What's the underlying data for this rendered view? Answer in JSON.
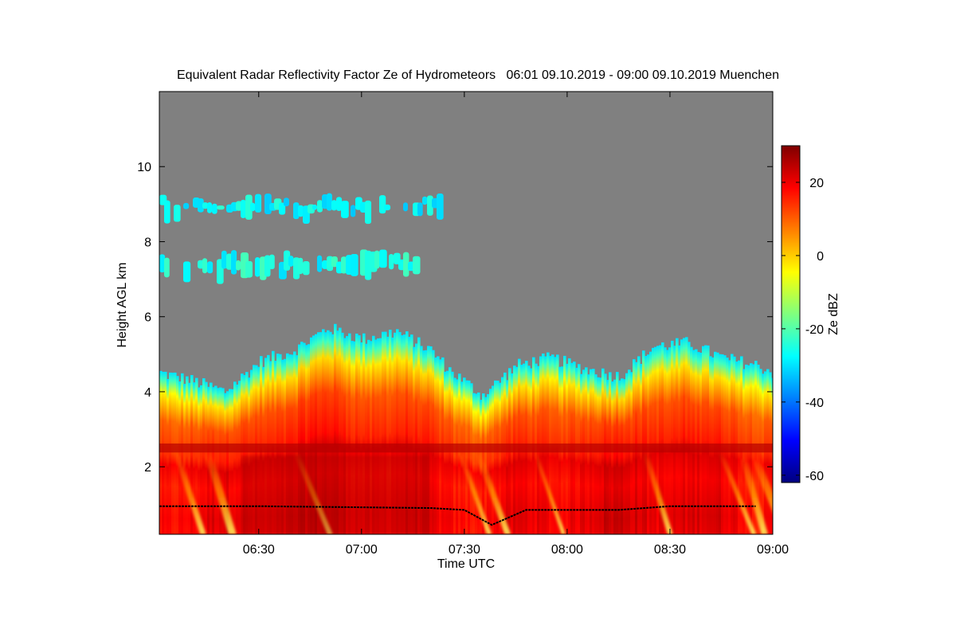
{
  "chart_data": {
    "type": "heatmap",
    "title": "Equivalent Radar Reflectivity Factor Ze of Hydrometeors   06:01 09.10.2019 - 09:00 09.10.2019 Muenchen",
    "xlabel": "Time UTC",
    "ylabel": "Height AGL km",
    "x_ticks": [
      "06:30",
      "07:00",
      "07:30",
      "08:00",
      "08:30",
      "09:00"
    ],
    "y_ticks": [
      "2",
      "4",
      "6",
      "8",
      "10"
    ],
    "xlim": [
      "06:01",
      "09:00"
    ],
    "ylim": [
      0.2,
      12
    ],
    "colorbar": {
      "label": "Ze dBZ",
      "ticks": [
        "20",
        "0",
        "-20",
        "-40",
        "-60"
      ],
      "range": [
        -62,
        30
      ],
      "colors": [
        "#00007f",
        "#0000ff",
        "#007fff",
        "#00ffff",
        "#7fff7f",
        "#ffff00",
        "#ff7f00",
        "#ff0000",
        "#7f0000"
      ]
    },
    "background_color": "#808080",
    "features": [
      {
        "name": "upper cirrus layer",
        "time_start": "06:01",
        "time_end": "07:22",
        "height_bottom": 8.4,
        "height_top": 9.3,
        "ze_dbz": -28
      },
      {
        "name": "mid cloud patches",
        "time_start": "06:01",
        "time_end": "07:15",
        "height_bottom": 6.8,
        "height_top": 7.8,
        "ze_dbz": -26
      },
      {
        "name": "main precipitating cloud",
        "time_start": "06:01",
        "time_end": "09:00",
        "height_bottom": 0.2,
        "height_top": 5.6,
        "ze_dbz": 10
      },
      {
        "name": "melting layer bright band",
        "time_start": "06:01",
        "time_end": "09:00",
        "height": 2.5,
        "ze_dbz": 25
      }
    ],
    "cloud_top_km": [
      [
        "06:01",
        4.5
      ],
      [
        "06:10",
        4.3
      ],
      [
        "06:20",
        4.0
      ],
      [
        "06:30",
        4.8
      ],
      [
        "06:40",
        5.1
      ],
      [
        "06:50",
        5.7
      ],
      [
        "07:00",
        5.4
      ],
      [
        "07:10",
        5.6
      ],
      [
        "07:20",
        5.1
      ],
      [
        "07:25",
        4.6
      ],
      [
        "07:35",
        3.9
      ],
      [
        "07:45",
        4.7
      ],
      [
        "07:55",
        4.9
      ],
      [
        "08:05",
        4.6
      ],
      [
        "08:15",
        4.4
      ],
      [
        "08:25",
        5.2
      ],
      [
        "08:35",
        5.3
      ],
      [
        "08:45",
        4.9
      ],
      [
        "08:55",
        4.7
      ],
      [
        "09:00",
        4.5
      ]
    ],
    "cloud_base_km": [
      [
        "06:01",
        0.95
      ],
      [
        "06:30",
        0.95
      ],
      [
        "07:00",
        0.92
      ],
      [
        "07:20",
        0.9
      ],
      [
        "07:30",
        0.85
      ],
      [
        "07:38",
        0.45
      ],
      [
        "07:48",
        0.85
      ],
      [
        "08:00",
        0.85
      ],
      [
        "08:15",
        0.85
      ],
      [
        "08:30",
        0.95
      ],
      [
        "08:45",
        0.95
      ],
      [
        "08:55",
        0.95
      ]
    ]
  }
}
